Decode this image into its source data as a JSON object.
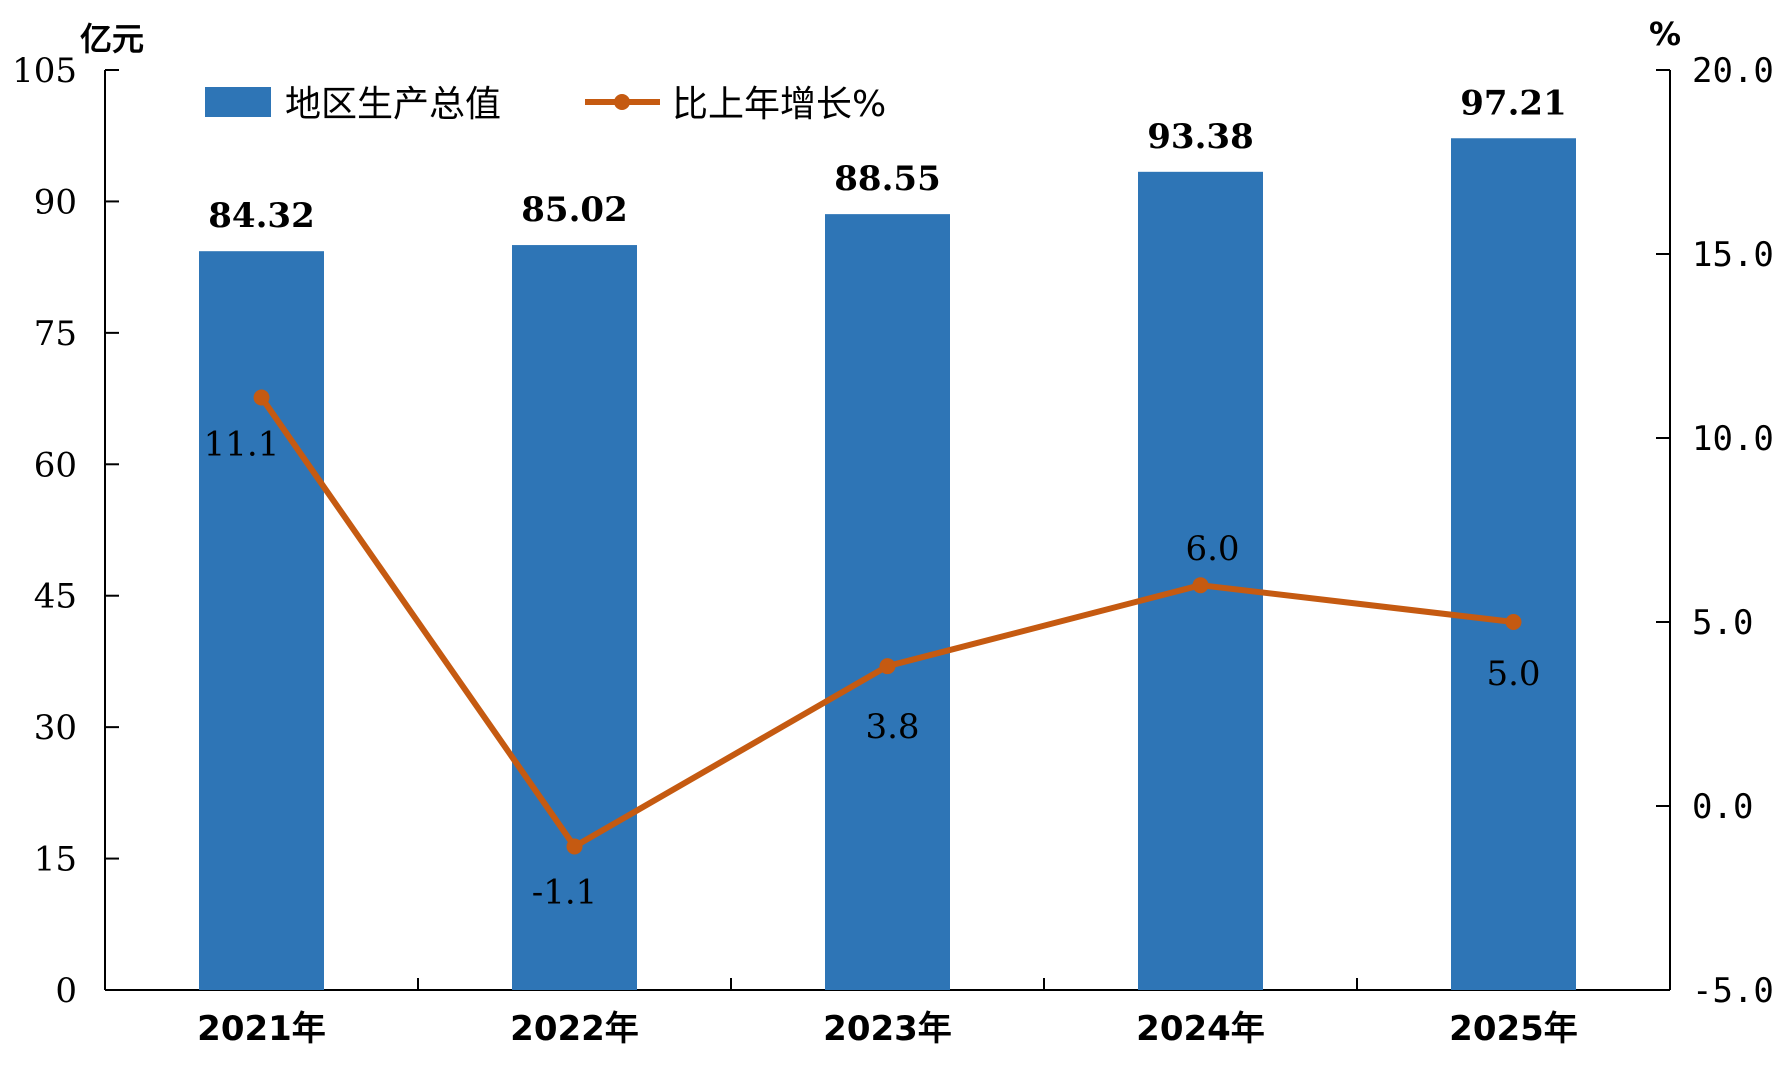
{
  "chart_data": {
    "type": "bar",
    "categories": [
      "2021年",
      "2022年",
      "2023年",
      "2024年",
      "2025年"
    ],
    "series": [
      {
        "name": "地区生产总值",
        "type": "bar",
        "axis": "left",
        "values": [
          84.32,
          85.02,
          88.55,
          93.38,
          97.21
        ],
        "labels": [
          "84.32",
          "85.02",
          "88.55",
          "93.38",
          "97.21"
        ]
      },
      {
        "name": "比上年增长%",
        "type": "line",
        "axis": "right",
        "values": [
          11.1,
          -1.1,
          3.8,
          6.0,
          5.0
        ],
        "labels": [
          "11.1",
          "-1.1",
          "3.8",
          "6.0",
          "5.0"
        ]
      }
    ],
    "y_left": {
      "unit": "亿元",
      "min": 0,
      "max": 105,
      "ticks": [
        "0",
        "15",
        "30",
        "45",
        "60",
        "75",
        "90",
        "105"
      ]
    },
    "y_right": {
      "unit": "%",
      "min": -5,
      "max": 20,
      "ticks": [
        "-5.0",
        "0.0",
        "5.0",
        "10.0",
        "15.0",
        "20.0"
      ]
    },
    "legend": "top-left",
    "grid": false,
    "colors": {
      "bar": "#2e75b6",
      "line": "#c55a11"
    }
  }
}
